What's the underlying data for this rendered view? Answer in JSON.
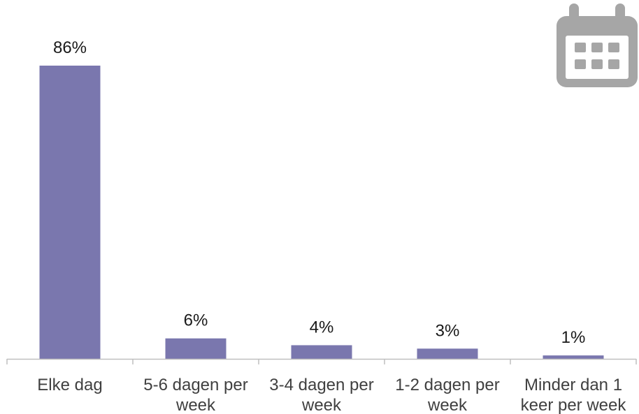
{
  "chart_data": {
    "type": "bar",
    "categories": [
      [
        "Elke dag"
      ],
      [
        "5-6 dagen per",
        "week"
      ],
      [
        "3-4 dagen per",
        "week"
      ],
      [
        "1-2 dagen per",
        "week"
      ],
      [
        "Minder dan 1",
        "keer per week"
      ]
    ],
    "values": [
      86,
      6,
      4,
      3,
      1
    ],
    "data_labels": [
      "86%",
      "6%",
      "4%",
      "3%",
      "1%"
    ],
    "value_unit": "%",
    "ylim": [
      0,
      86
    ],
    "grid": false,
    "legend": "none"
  },
  "colors": {
    "bar": "#7a77ae",
    "axis": "#bfbfbf",
    "icon": "#a6a6a6"
  },
  "icons": [
    "calendar-icon"
  ]
}
